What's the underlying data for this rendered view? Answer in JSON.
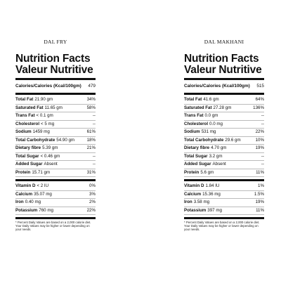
{
  "panels": [
    {
      "name": "DAL FRY",
      "heading_en": "Nutrition Facts",
      "heading_fr": "Valeur Nutritive",
      "calories_label": "Calories/Calories (Kcal/100gm)",
      "calories_value": "479",
      "nutrients": [
        {
          "label": "Total Fat",
          "amount": "21.90 gm",
          "dv": "34%"
        },
        {
          "label": "Saturated Fat",
          "amount": "11.65 gm",
          "dv": "58%"
        },
        {
          "label": "Trans Fat",
          "amount": "< 0.1 gm",
          "dv": "--"
        },
        {
          "label": "Cholesterol",
          "amount": "< 5 mg",
          "dv": "--"
        },
        {
          "label": "Sodium",
          "amount": "1459 mg",
          "dv": "61%"
        },
        {
          "label": "Total Carbohydrate",
          "amount": "54.90 gm",
          "dv": "18%"
        },
        {
          "label": "Dietary fibre",
          "amount": "5.39 gm",
          "dv": "21%"
        },
        {
          "label": "Total Sugar",
          "amount": "< 0.46 gm",
          "dv": "--"
        },
        {
          "label": "Added Sugar",
          "amount": "Absent",
          "dv": "--"
        },
        {
          "label": "Protein",
          "amount": "15.71 gm",
          "dv": "31%"
        }
      ],
      "vitamins": [
        {
          "label": "Vitamin D",
          "amount": "< 2 IU",
          "dv": "0%"
        },
        {
          "label": "Calcium",
          "amount": "35.07 mg",
          "dv": "3%"
        },
        {
          "label": "Iron",
          "amount": "0.40 mg",
          "dv": "2%"
        },
        {
          "label": "Potassium",
          "amount": "760 mg",
          "dv": "22%"
        }
      ],
      "footnote": "* Percent Daily Values are based on a 2,000 calorie diet. Your Daily Values may be higher or lower depending on your needs."
    },
    {
      "name": "DAL MAKHANI",
      "heading_en": "Nutrition Facts",
      "heading_fr": "Valeur Nutritive",
      "calories_label": "Calories/Calories (Kcal/100gm)",
      "calories_value": "515",
      "nutrients": [
        {
          "label": "Total Fat",
          "amount": "41.6 gm",
          "dv": "64%"
        },
        {
          "label": "Saturated Fat",
          "amount": "27.28 gm",
          "dv": "136%"
        },
        {
          "label": "Trans Fat",
          "amount": "0.0 gm",
          "dv": "--"
        },
        {
          "label": "Cholesterol",
          "amount": "0.0 mg",
          "dv": "--"
        },
        {
          "label": "Sodium",
          "amount": "531 mg",
          "dv": "22%"
        },
        {
          "label": "Total Carbohydrate",
          "amount": "29.6 gm",
          "dv": "10%"
        },
        {
          "label": "Dietary fibre",
          "amount": "4.70 gm",
          "dv": "19%"
        },
        {
          "label": "Total Sugar",
          "amount": "3.2 gm",
          "dv": "--"
        },
        {
          "label": "Added Sugar",
          "amount": "Absent",
          "dv": "--"
        },
        {
          "label": "Protein",
          "amount": "5.6 gm",
          "dv": "11%"
        }
      ],
      "vitamins": [
        {
          "label": "Vitamin D",
          "amount": "1.84 IU",
          "dv": "1%"
        },
        {
          "label": "Calcium",
          "amount": "15.36 mg",
          "dv": "1.5%"
        },
        {
          "label": "Iron",
          "amount": "3.58 mg",
          "dv": "19%"
        },
        {
          "label": "Potassium",
          "amount": "397 mg",
          "dv": "11%"
        }
      ],
      "footnote": "* Percent Daily Values are based on a 2,000 calorie diet. Your Daily Values may be higher or lower depending on your needs."
    }
  ]
}
